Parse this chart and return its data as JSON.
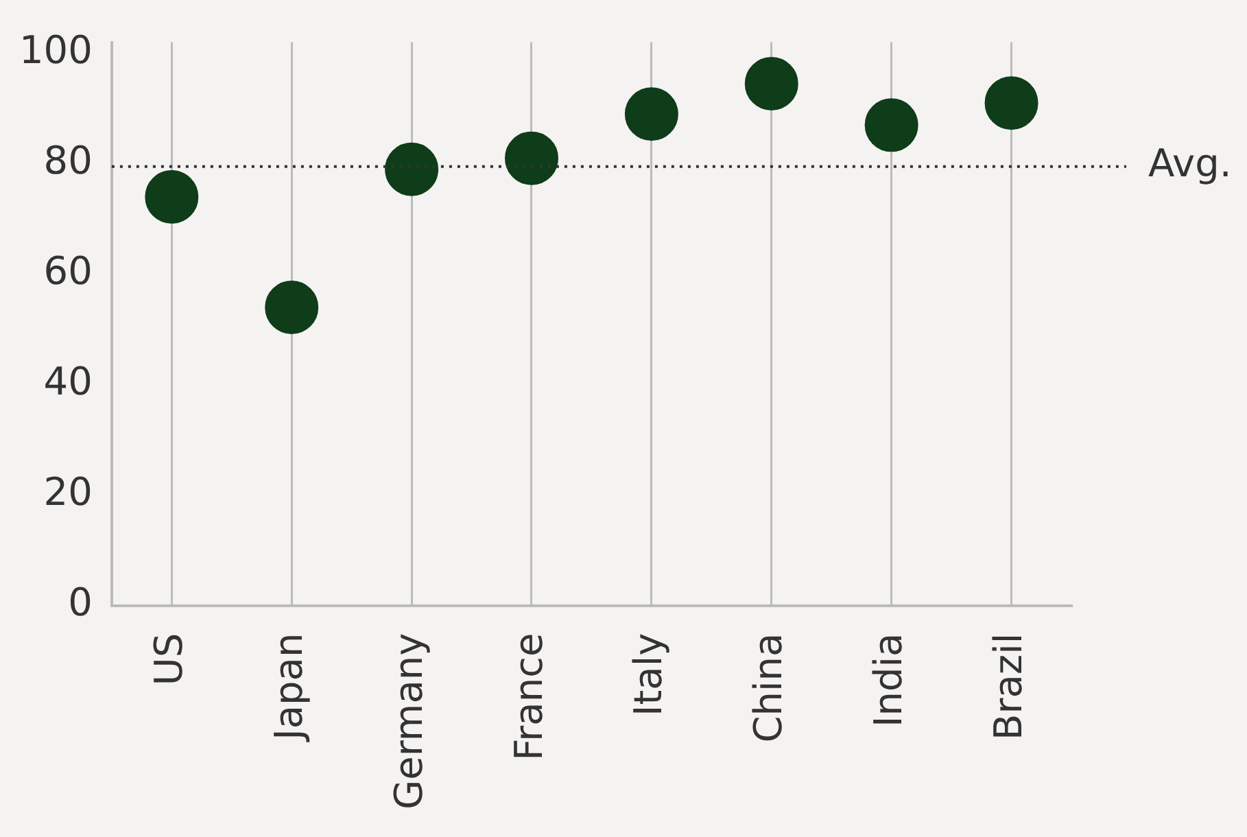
{
  "chart_data": {
    "type": "scatter",
    "categories": [
      "US",
      "Japan",
      "Germany",
      "France",
      "Italy",
      "China",
      "India",
      "Brazil"
    ],
    "series": [
      {
        "color": "#0f3d1a",
        "values": [
          74,
          54,
          79,
          81,
          89,
          94.5,
          87,
          91
        ]
      }
    ],
    "ylim": [
      0,
      102
    ],
    "yticks": [
      0,
      20,
      40,
      60,
      80,
      100
    ],
    "grid": "x",
    "marker": "circle",
    "legend": false,
    "ref_lines": [
      {
        "axis": "y",
        "value": 79.5,
        "label": "Avg.",
        "line_style": "dotted",
        "color": "#333333"
      }
    ]
  }
}
